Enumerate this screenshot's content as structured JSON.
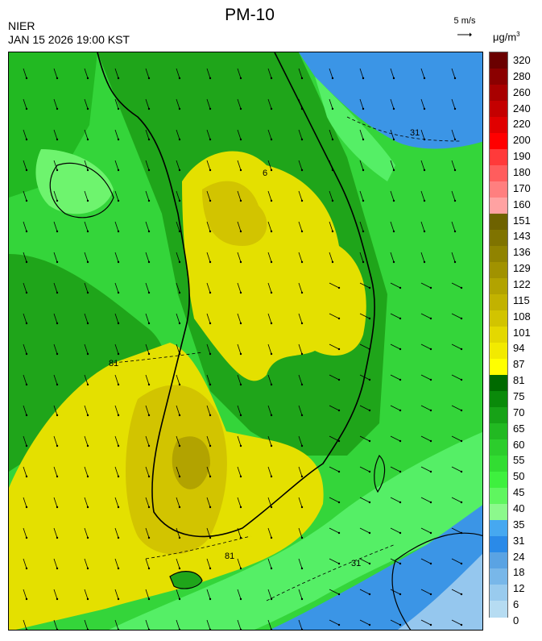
{
  "header": {
    "title": "PM-10",
    "agency": "NIER",
    "datetime": "JAN 15 2026 19:00 KST",
    "wind_reference": "5 m/s",
    "unit_prefix": "μg/m",
    "unit_power": "3"
  },
  "map": {
    "contour_labels": [
      {
        "text": "81",
        "where": "west-sea"
      },
      {
        "text": "81",
        "where": "southwest-coast"
      },
      {
        "text": "31",
        "where": "south-sea"
      },
      {
        "text": "31",
        "where": "east-sea"
      },
      {
        "text": "6",
        "where": "northeast-inland"
      }
    ],
    "wind_direction": "north-northwest",
    "colors": {
      "very_high": "#d2c400",
      "high": "#e4e000",
      "moderate_dark": "#1fa51a",
      "moderate": "#34d53a",
      "low": "#55ef66",
      "clean": "#3b95e6",
      "cleanest": "#95c7ee"
    }
  },
  "legend": {
    "levels": [
      "320",
      "280",
      "260",
      "240",
      "220",
      "200",
      "190",
      "180",
      "170",
      "160",
      "151",
      "143",
      "136",
      "129",
      "122",
      "115",
      "108",
      "101",
      "94",
      "87",
      "81",
      "75",
      "70",
      "65",
      "60",
      "55",
      "50",
      "45",
      "40",
      "35",
      "31",
      "24",
      "18",
      "12",
      "6",
      "0"
    ],
    "colors": [
      "#6a0000",
      "#8b0000",
      "#a80000",
      "#c40000",
      "#e00000",
      "#ff0000",
      "#ff3a3a",
      "#ff5d5d",
      "#ff7f7f",
      "#ffa2a2",
      "#6e6200",
      "#7f7300",
      "#908300",
      "#a19200",
      "#b2a300",
      "#c2b200",
      "#d2c400",
      "#e4d800",
      "#f2ea00",
      "#ffff00",
      "#006a00",
      "#0a8a0a",
      "#17a217",
      "#22b922",
      "#2ccd2c",
      "#32dd32",
      "#3ef03e",
      "#5ff65f",
      "#8cf98c",
      "#46a8f0",
      "#2a8ae8",
      "#5aa3e3",
      "#78b7e9",
      "#99cbee",
      "#b6dcf2"
    ]
  }
}
